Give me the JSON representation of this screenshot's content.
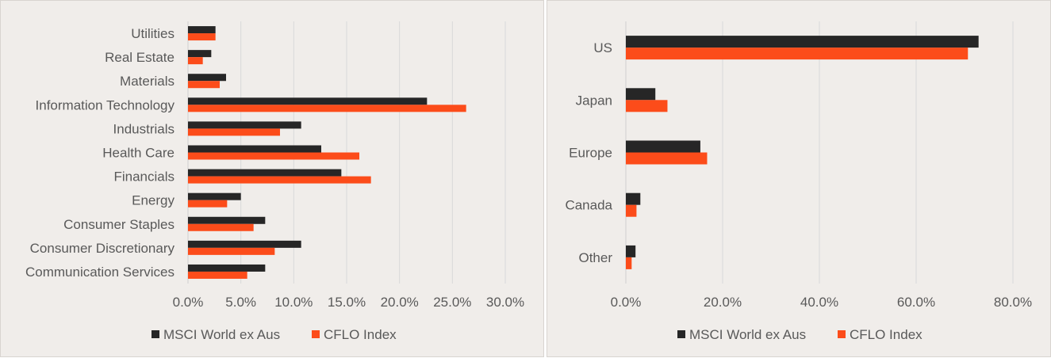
{
  "colors": {
    "series1": "#262626",
    "series2": "#fc4c1a",
    "background": "#f0edea"
  },
  "chart_data": [
    {
      "type": "bar",
      "orientation": "horizontal",
      "categories": [
        "Utilities",
        "Real Estate",
        "Materials",
        "Information Technology",
        "Industrials",
        "Health Care",
        "Financials",
        "Energy",
        "Consumer Staples",
        "Consumer Discretionary",
        "Communication Services"
      ],
      "series": [
        {
          "name": "MSCI World ex Aus",
          "values": [
            2.6,
            2.2,
            3.6,
            22.6,
            10.7,
            12.6,
            14.5,
            5.0,
            7.3,
            10.7,
            7.3
          ]
        },
        {
          "name": "CFLO Index",
          "values": [
            2.6,
            1.4,
            3.0,
            26.3,
            8.7,
            16.2,
            17.3,
            3.7,
            6.2,
            8.2,
            5.6
          ]
        }
      ],
      "xlim": [
        0,
        30
      ],
      "xticks": [
        "0.0%",
        "5.0%",
        "10.0%",
        "15.0%",
        "20.0%",
        "25.0%",
        "30.0%"
      ],
      "grid": "vertical",
      "legend": "bottom"
    },
    {
      "type": "bar",
      "orientation": "horizontal",
      "categories": [
        "US",
        "Japan",
        "Europe",
        "Canada",
        "Other"
      ],
      "series": [
        {
          "name": "MSCI World ex Aus",
          "values": [
            72.9,
            6.1,
            15.4,
            3.0,
            2.0
          ]
        },
        {
          "name": "CFLO Index",
          "values": [
            70.7,
            8.6,
            16.8,
            2.2,
            1.2
          ]
        }
      ],
      "xlim": [
        0,
        80
      ],
      "xticks": [
        "0.0%",
        "20.0%",
        "40.0%",
        "60.0%",
        "80.0%"
      ],
      "grid": "vertical",
      "legend": "bottom"
    }
  ]
}
